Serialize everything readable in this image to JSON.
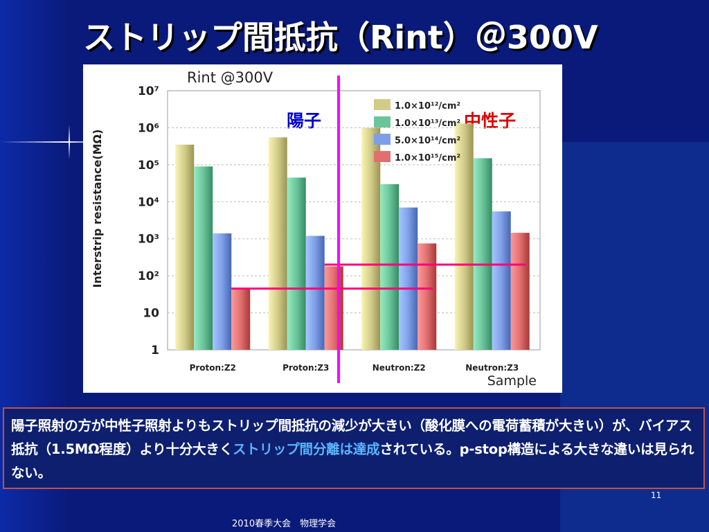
{
  "slide": {
    "title": "ストリップ間抵抗（Rint）＠300V",
    "page_number": "11",
    "footer": "2010春季大会　物理学会"
  },
  "annotations": {
    "proton": "陽子",
    "neutron": "中性子",
    "proton_color": "#0000cc",
    "neutron_color": "#dd0000"
  },
  "textbox": {
    "part1": "陽子照射の方が中性子照射よりもストリップ間抵抗の減少が大きい（酸化膜への電荷蓄積が大きい）が、バイアス抵抗（1.5MΩ程度）より十分大きく",
    "highlight": "ストリップ間分離は達成",
    "part2": "されている。p-stop構造による大きな違いは見られない。",
    "highlight_color": "#5ab4ff",
    "border_color": "#c0504d"
  },
  "chart_data": {
    "type": "bar",
    "title": "Rint @300V",
    "xlabel": "Sample",
    "ylabel": "Interstrip resistance(MΩ)",
    "yscale": "log",
    "ylim": [
      1,
      10000000
    ],
    "ytick_labels": [
      "1",
      "10",
      "10²",
      "10³",
      "10⁴",
      "10⁵",
      "10⁶",
      "10⁷"
    ],
    "categories": [
      "Proton:Z2",
      "Proton:Z3",
      "Neutron:Z2",
      "Neutron:Z3"
    ],
    "series": [
      {
        "name": "1.0×10¹²/cm²",
        "color": "#d2cc8a",
        "values": [
          350000,
          550000,
          1000000,
          1300000
        ]
      },
      {
        "name": "1.0×10¹³/cm²",
        "color": "#6cc49a",
        "values": [
          90000,
          45000,
          30000,
          150000
        ]
      },
      {
        "name": "5.0×10¹⁴/cm²",
        "color": "#7e9ee8",
        "values": [
          1400,
          1200,
          7000,
          5500
        ]
      },
      {
        "name": "1.0×10¹⁵/cm²",
        "color": "#e07070",
        "values": [
          45,
          180,
          750,
          1450
        ]
      }
    ],
    "reference_lines": [
      {
        "value": 45,
        "from_category": 0,
        "to_category": 2,
        "color": "#ff0077"
      },
      {
        "value": 200,
        "from_category": 1,
        "to_category": 3,
        "color": "#ff0077"
      }
    ],
    "divider_color": "#ff00ff",
    "grid": true,
    "legend_position": "top-right"
  }
}
